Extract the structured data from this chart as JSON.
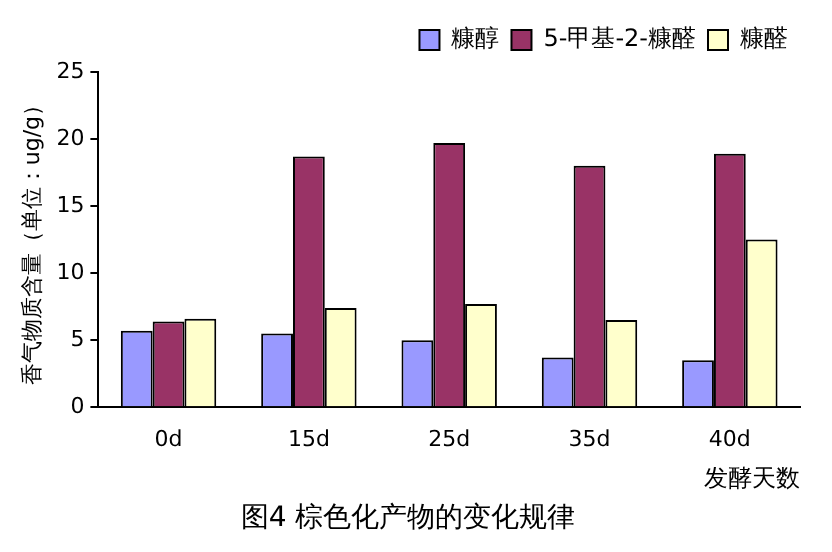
{
  "chart_data": {
    "type": "bar",
    "title": "图4 棕色化产物的变化规律",
    "xlabel": "发酵天数",
    "ylabel": "香气物质含量（单位：ug/g）",
    "categories": [
      "0d",
      "15d",
      "25d",
      "35d",
      "40d"
    ],
    "series": [
      {
        "name": "糠醇",
        "color": "#9999ff",
        "values": [
          5.7,
          5.5,
          5.0,
          3.7,
          3.5
        ]
      },
      {
        "name": "5-甲基-2-糠醛",
        "color": "#993366",
        "values": [
          6.4,
          18.7,
          19.7,
          18.0,
          18.9
        ]
      },
      {
        "name": "糠醛",
        "color": "#ffffcc",
        "values": [
          6.6,
          7.4,
          7.7,
          6.5,
          12.5
        ]
      }
    ],
    "ylim": [
      0,
      25
    ],
    "yticks": [
      0,
      5,
      10,
      15,
      20,
      25
    ],
    "grid": false,
    "legend": "top"
  }
}
